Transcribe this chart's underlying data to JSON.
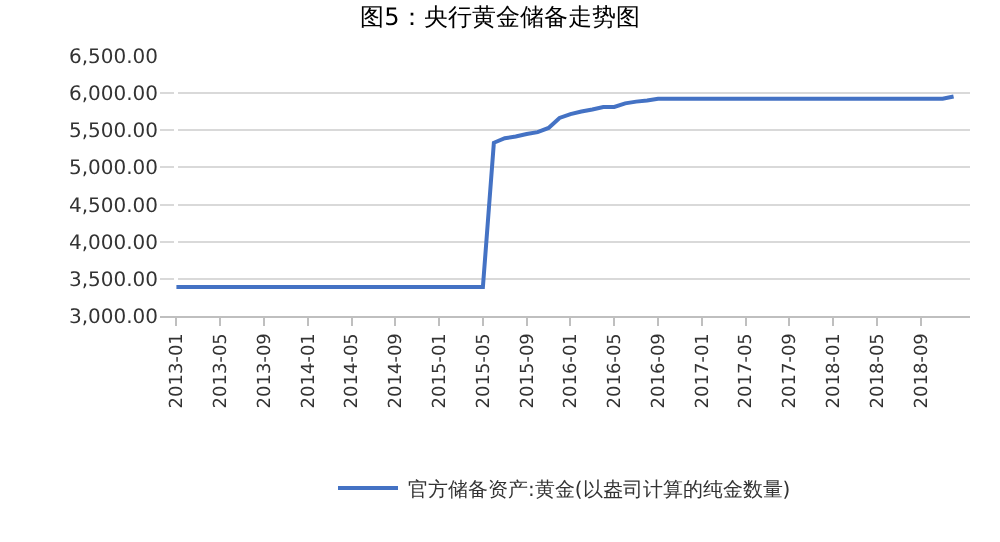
{
  "chart_data": {
    "type": "line",
    "title": "图5：央行黄金储备走势图",
    "categories": [
      "2013-01",
      null,
      null,
      null,
      "2013-05",
      null,
      null,
      null,
      "2013-09",
      null,
      null,
      null,
      "2014-01",
      null,
      null,
      null,
      "2014-05",
      null,
      null,
      null,
      "2014-09",
      null,
      null,
      null,
      "2015-01",
      null,
      null,
      null,
      "2015-05",
      null,
      null,
      null,
      "2015-09",
      null,
      null,
      null,
      "2016-01",
      null,
      null,
      null,
      "2016-05",
      null,
      null,
      null,
      "2016-09",
      null,
      null,
      null,
      "2017-01",
      null,
      null,
      null,
      "2017-05",
      null,
      null,
      null,
      "2017-09",
      null,
      null,
      null,
      "2018-01",
      null,
      null,
      null,
      "2018-05",
      null,
      null,
      null,
      "2018-09",
      null,
      null,
      null
    ],
    "series": [
      {
        "name": "官方储备资产:黄金(以盎司计算的纯金数量)",
        "color": "#4472c4",
        "values": [
          3389,
          3389,
          3389,
          3389,
          3389,
          3389,
          3389,
          3389,
          3389,
          3389,
          3389,
          3389,
          3389,
          3389,
          3389,
          3389,
          3389,
          3389,
          3389,
          3389,
          3389,
          3389,
          3389,
          3389,
          3389,
          3389,
          3389,
          3389,
          3389,
          5332,
          5393,
          5416,
          5450,
          5475,
          5531,
          5666,
          5718,
          5752,
          5780,
          5814,
          5814,
          5862,
          5886,
          5900,
          5924,
          5924,
          5924,
          5924,
          5924,
          5924,
          5924,
          5924,
          5924,
          5924,
          5924,
          5924,
          5924,
          5924,
          5924,
          5924,
          5924,
          5924,
          5924,
          5924,
          5924,
          5924,
          5924,
          5924,
          5924,
          5924,
          5924,
          5956
        ]
      }
    ],
    "ylim": [
      3000,
      6500
    ],
    "yticks": [
      {
        "value": 3000,
        "label": "3,000.00"
      },
      {
        "value": 3500,
        "label": "3,500.00"
      },
      {
        "value": 4000,
        "label": "4,000.00"
      },
      {
        "value": 4500,
        "label": "4,500.00"
      },
      {
        "value": 5000,
        "label": "5,000.00"
      },
      {
        "value": 5500,
        "label": "5,500.00"
      },
      {
        "value": 6000,
        "label": "6,000.00"
      },
      {
        "value": 6500,
        "label": "6,500.00"
      }
    ],
    "grid": "y",
    "legend": "bottom",
    "marker": "none",
    "line_style": "solid"
  }
}
